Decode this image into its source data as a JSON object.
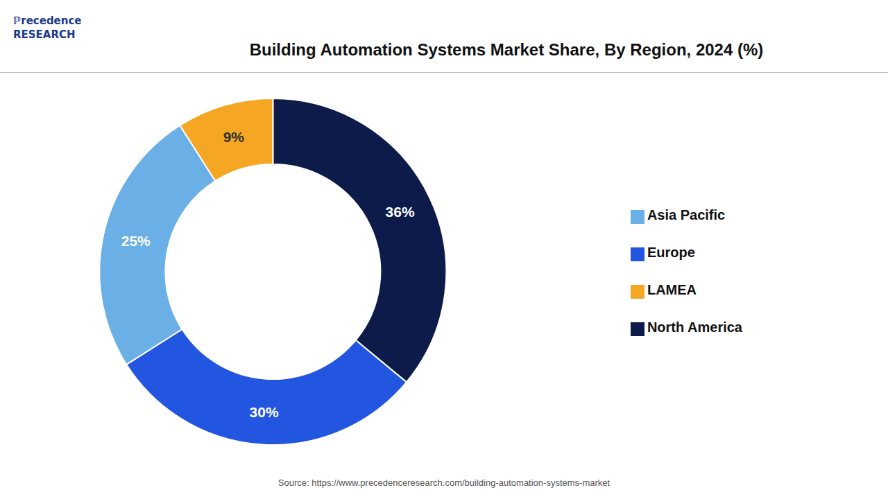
{
  "chart_data": {
    "type": "pie",
    "title": "Building Automation Systems Market Share, By Region, 2024 (%)",
    "categories": [
      "North America",
      "Europe",
      "Asia Pacific",
      "LAMEA"
    ],
    "values": [
      36,
      30,
      25,
      9
    ],
    "colors": [
      "#0d1b4b",
      "#2255e0",
      "#6aafe6",
      "#f5a623"
    ],
    "data_labels": true,
    "value_labels": [
      "36%",
      "30%",
      "25%",
      "9%"
    ],
    "legend": "right",
    "annotations": [
      "ℙrecedence",
      "RESEARCH",
      "Source: https://www.precedenceresearch.com/building-automation-systems-market"
    ]
  }
}
